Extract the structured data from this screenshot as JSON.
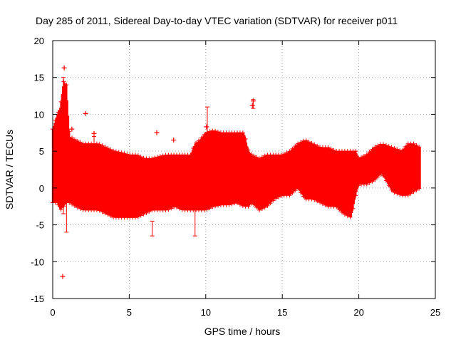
{
  "chart_data": {
    "type": "scatter",
    "title": "Day 285 of 2011, Sidereal Day-to-day VTEC variation (SDTVAR) for receiver p011",
    "xlabel": "GPS time / hours",
    "ylabel": "SDTVAR / TECUs",
    "xlim": [
      0,
      25
    ],
    "ylim": [
      -15,
      20
    ],
    "xticks": [
      0,
      5,
      10,
      15,
      20,
      25
    ],
    "yticks": [
      -15,
      -10,
      -5,
      0,
      5,
      10,
      15,
      20
    ],
    "grid": true,
    "series_color": "#ff0000",
    "series": [
      {
        "name": "SDTVAR",
        "marker": "plus",
        "with_error_bars": true,
        "band": [
          [
            0.0,
            -2,
            8
          ],
          [
            0.3,
            -2,
            10
          ],
          [
            0.5,
            -3,
            11
          ],
          [
            0.7,
            -2.5,
            14.5
          ],
          [
            0.9,
            -2,
            14
          ],
          [
            1.1,
            -2,
            7
          ],
          [
            1.5,
            -2.5,
            6.5
          ],
          [
            2.0,
            -3,
            6
          ],
          [
            2.5,
            -3,
            6
          ],
          [
            3.0,
            -3,
            6
          ],
          [
            3.5,
            -3.5,
            5.5
          ],
          [
            4.0,
            -4,
            5
          ],
          [
            4.5,
            -4,
            4.8
          ],
          [
            5.0,
            -4,
            4.5
          ],
          [
            5.5,
            -4,
            4.5
          ],
          [
            6.0,
            -3.5,
            4
          ],
          [
            6.5,
            -3,
            4
          ],
          [
            7.0,
            -3,
            4.3
          ],
          [
            7.5,
            -3,
            4.5
          ],
          [
            8.0,
            -2.5,
            4.5
          ],
          [
            8.5,
            -3,
            4.5
          ],
          [
            9.0,
            -3,
            4.5
          ],
          [
            9.3,
            -3,
            6
          ],
          [
            9.6,
            -3,
            6.5
          ],
          [
            10.0,
            -3,
            7.5
          ],
          [
            10.5,
            -2.5,
            7.8
          ],
          [
            11.0,
            -2.3,
            7.5
          ],
          [
            11.5,
            -2.3,
            7.5
          ],
          [
            12.0,
            -2,
            7.5
          ],
          [
            12.5,
            -2.5,
            7.5
          ],
          [
            12.8,
            -2.5,
            5
          ],
          [
            13.0,
            -2,
            4.5
          ],
          [
            13.5,
            -3,
            4
          ],
          [
            14.0,
            -2.5,
            4.5
          ],
          [
            14.5,
            -1.5,
            4.5
          ],
          [
            15.0,
            -1,
            4.5
          ],
          [
            15.5,
            -1,
            5
          ],
          [
            16.0,
            0,
            6
          ],
          [
            16.5,
            -1.5,
            6.5
          ],
          [
            17.0,
            -1.5,
            6
          ],
          [
            17.5,
            -2,
            5.5
          ],
          [
            18.0,
            -2.5,
            5.5
          ],
          [
            18.5,
            -2.5,
            5
          ],
          [
            19.0,
            -3.5,
            5
          ],
          [
            19.5,
            -4,
            5
          ],
          [
            19.8,
            -1,
            5
          ],
          [
            20.0,
            0.5,
            4
          ],
          [
            20.5,
            0.5,
            4.5
          ],
          [
            21.0,
            1,
            5.5
          ],
          [
            21.5,
            2,
            6
          ],
          [
            22.2,
            -0.5,
            5.5
          ],
          [
            22.8,
            -1,
            5
          ],
          [
            23.2,
            -1,
            6
          ],
          [
            23.6,
            -0.5,
            6
          ],
          [
            24.0,
            0,
            5.5
          ]
        ],
        "error_bars": [
          [
            0.7,
            -3.5,
            15
          ],
          [
            0.9,
            -6,
            2
          ],
          [
            2.7,
            2,
            7
          ],
          [
            3.3,
            1,
            5
          ],
          [
            6.5,
            -6.5,
            -4.5
          ],
          [
            9.3,
            -6.5,
            1
          ],
          [
            10.1,
            5,
            11
          ],
          [
            13.1,
            10.8,
            12
          ]
        ],
        "outliers": [
          [
            0.75,
            16.3
          ],
          [
            0.65,
            -12.0
          ],
          [
            2.15,
            10.1
          ],
          [
            6.8,
            7.5
          ],
          [
            7.9,
            6.5
          ],
          [
            13.05,
            11.2
          ],
          [
            13.1,
            11.8
          ],
          [
            10.05,
            8.3
          ],
          [
            2.7,
            7.4
          ],
          [
            1.25,
            8.0
          ]
        ]
      }
    ]
  }
}
